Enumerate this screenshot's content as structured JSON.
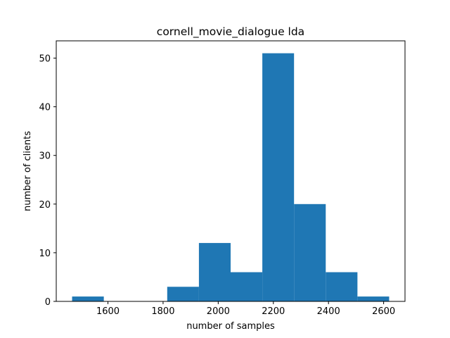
{
  "chart_data": {
    "type": "bar",
    "title": "cornell_movie_dialogue lda",
    "xlabel": "number of samples",
    "ylabel": "number of clients",
    "bin_edges": [
      1470,
      1585,
      1700,
      1815,
      1930,
      2045,
      2160,
      2275,
      2390,
      2505,
      2620
    ],
    "values": [
      1,
      0,
      0,
      3,
      12,
      6,
      51,
      20,
      6,
      1
    ],
    "xlim": [
      1412.5,
      2677.5
    ],
    "ylim": [
      0,
      53.55
    ],
    "xticks": [
      1600,
      1800,
      2000,
      2200,
      2400,
      2600
    ],
    "yticks": [
      0,
      10,
      20,
      30,
      40,
      50
    ],
    "bar_color": "#1f77b4",
    "grid": false,
    "legend": "none"
  }
}
